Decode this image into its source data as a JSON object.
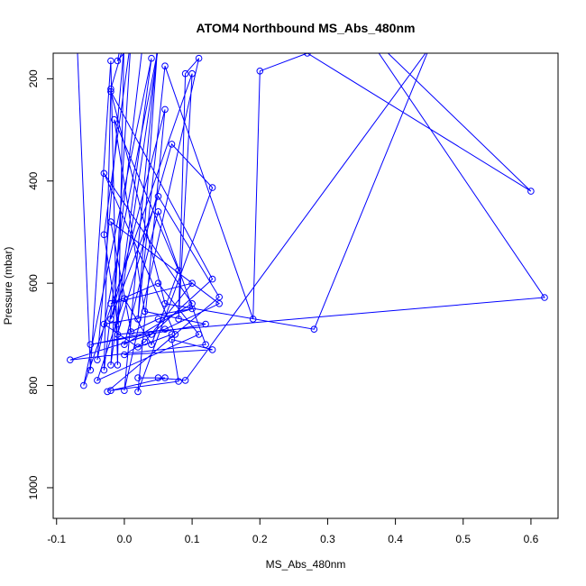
{
  "chart_data": {
    "type": "scatter",
    "title": "ATOM4 Northbound MS_Abs_480nm",
    "xlabel": "MS_Abs_480nm",
    "ylabel": "Pressure (mbar)",
    "xlim": [
      -0.105,
      0.64
    ],
    "ylim": [
      1060,
      150
    ],
    "y_reversed": true,
    "x_ticks": [
      -0.1,
      0.0,
      0.1,
      0.2,
      0.3,
      0.4,
      0.5,
      0.6
    ],
    "x_tick_labels": [
      "-0.1",
      "0.0",
      "0.1",
      "0.2",
      "0.3",
      "0.4",
      "0.5",
      "0.6"
    ],
    "y_ticks": [
      200,
      400,
      600,
      800,
      1000
    ],
    "y_tick_labels": [
      "200",
      "400",
      "600",
      "800",
      "1000"
    ],
    "grid": false,
    "legend": "none",
    "series": [
      {
        "color": "#0000ff",
        "marker": "open-circle",
        "line": true,
        "points": [
          [
            -0.07,
            120
          ],
          [
            -0.05,
            770
          ],
          [
            -0.02,
            165
          ],
          [
            -0.01,
            760
          ],
          [
            0.0,
            100
          ],
          [
            -0.01,
            165
          ],
          [
            0.03,
            100
          ],
          [
            -0.03,
            770
          ],
          [
            -0.02,
            220
          ],
          [
            0.0,
            130
          ],
          [
            -0.04,
            750
          ],
          [
            0.05,
            140
          ],
          [
            -0.01,
            680
          ],
          [
            -0.03,
            505
          ],
          [
            0.01,
            120
          ],
          [
            -0.02,
            760
          ],
          [
            0.04,
            160
          ],
          [
            -0.06,
            800
          ],
          [
            0.1,
            190
          ],
          [
            0.08,
            670
          ],
          [
            0.09,
            190
          ],
          [
            0.11,
            160
          ],
          [
            0.0,
            810
          ],
          [
            0.05,
            120
          ],
          [
            0.02,
            670
          ],
          [
            0.06,
            175
          ],
          [
            0.19,
            670
          ],
          [
            0.2,
            185
          ],
          [
            0.27,
            150
          ],
          [
            0.6,
            420
          ],
          [
            0.35,
            100
          ],
          [
            0.62,
            628
          ],
          [
            -0.01,
            700
          ],
          [
            0.07,
            328
          ],
          [
            0.13,
            413
          ],
          [
            0.02,
            812
          ],
          [
            0.06,
            260
          ],
          [
            -0.02,
            670
          ],
          [
            0.05,
            430
          ],
          [
            0.14,
            627
          ],
          [
            -0.025,
            812
          ],
          [
            0.075,
            700
          ],
          [
            -0.03,
            385
          ],
          [
            0.1,
            640
          ],
          [
            0.0,
            720
          ],
          [
            0.05,
            460
          ],
          [
            0.12,
            720
          ],
          [
            -0.08,
            750
          ],
          [
            0.04,
            700
          ],
          [
            0.13,
            592
          ],
          [
            -0.02,
            225
          ],
          [
            0.06,
            640
          ],
          [
            0.28,
            690
          ],
          [
            0.45,
            140
          ],
          [
            0.09,
            790
          ],
          [
            0.05,
            785
          ],
          [
            0.02,
            785
          ],
          [
            0.06,
            785
          ],
          [
            -0.02,
            810
          ],
          [
            0.08,
            792
          ],
          [
            0.07,
            710
          ],
          [
            0.13,
            730
          ],
          [
            0.0,
            740
          ],
          [
            0.03,
            715
          ],
          [
            0.1,
            600
          ],
          [
            -0.02,
            640
          ],
          [
            0.05,
            600
          ],
          [
            0.11,
            700
          ],
          [
            -0.04,
            790
          ],
          [
            0.0,
            630
          ],
          [
            0.04,
            720
          ],
          [
            0.08,
            575
          ],
          [
            -0.015,
            280
          ],
          [
            0.03,
            655
          ],
          [
            0.12,
            680
          ],
          [
            -0.05,
            720
          ],
          [
            0.06,
            690
          ],
          [
            0.14,
            640
          ],
          [
            -0.02,
            480
          ],
          [
            0.01,
            695
          ],
          [
            0.05,
            670
          ],
          [
            0.1,
            650
          ],
          [
            -0.03,
            680
          ],
          [
            0.02,
            725
          ],
          [
            0.07,
            700
          ]
        ]
      }
    ]
  }
}
